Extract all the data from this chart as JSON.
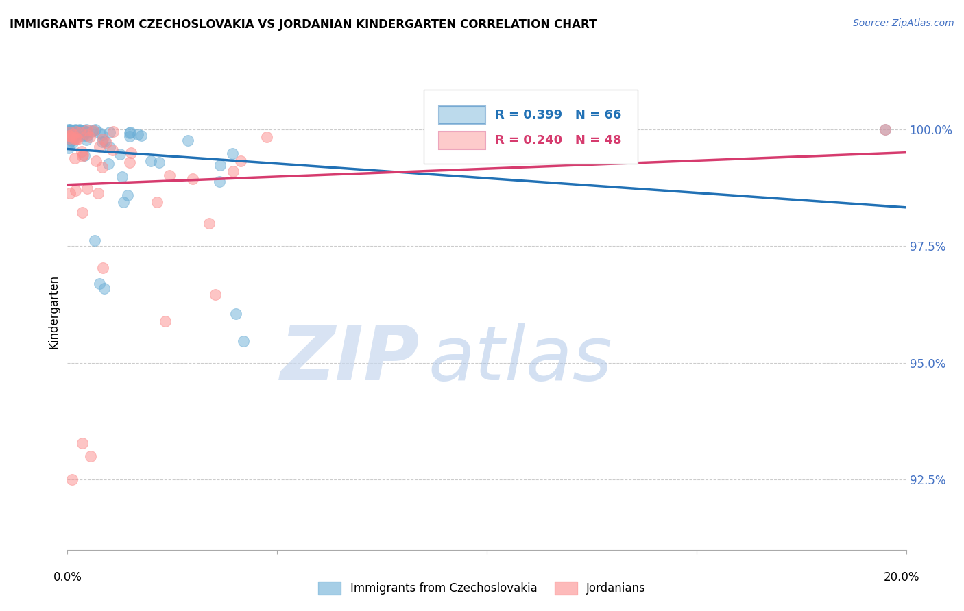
{
  "title": "IMMIGRANTS FROM CZECHOSLOVAKIA VS JORDANIAN KINDERGARTEN CORRELATION CHART",
  "source": "Source: ZipAtlas.com",
  "ylabel": "Kindergarten",
  "ytick_labels": [
    "92.5%",
    "95.0%",
    "97.5%",
    "100.0%"
  ],
  "ytick_values": [
    92.5,
    95.0,
    97.5,
    100.0
  ],
  "xlim": [
    0.0,
    20.0
  ],
  "ylim": [
    91.0,
    101.2
  ],
  "legend_blue_label": "Immigrants from Czechoslovakia",
  "legend_pink_label": "Jordanians",
  "R_blue": 0.399,
  "N_blue": 66,
  "R_pink": 0.24,
  "N_pink": 48,
  "blue_color": "#6baed6",
  "pink_color": "#fc8d8d",
  "blue_line_color": "#2171b5",
  "pink_line_color": "#d63b6e",
  "grid_color": "#cccccc",
  "watermark_zip_color": "#c8d8ee",
  "watermark_atlas_color": "#b0c8e8"
}
